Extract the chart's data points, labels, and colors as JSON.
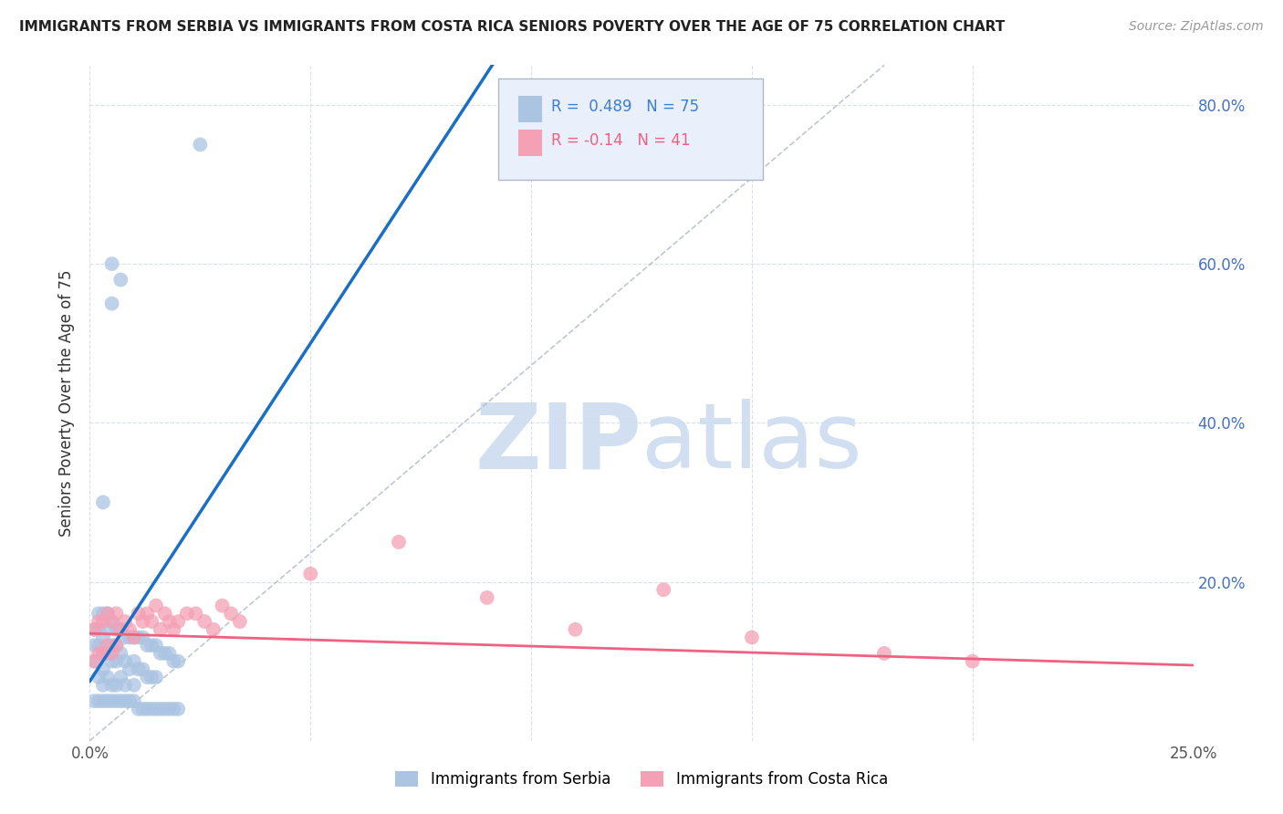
{
  "title": "IMMIGRANTS FROM SERBIA VS IMMIGRANTS FROM COSTA RICA SENIORS POVERTY OVER THE AGE OF 75 CORRELATION CHART",
  "source": "Source: ZipAtlas.com",
  "ylabel": "Seniors Poverty Over the Age of 75",
  "xlim": [
    0.0,
    0.25
  ],
  "ylim": [
    0.0,
    0.85
  ],
  "serbia_R": 0.489,
  "serbia_N": 75,
  "costarica_R": -0.14,
  "costarica_N": 41,
  "serbia_color": "#aac4e2",
  "costarica_color": "#f4a0b5",
  "serbia_line_color": "#1a6fc4",
  "costarica_line_color": "#f06080",
  "watermark_color": "#ccdcf0",
  "background_color": "#ffffff",
  "grid_color": "#d0d8e8",
  "legend_border_color": "#b0b8c8",
  "legend_bg_color": "#eaf0fb",
  "serbia_label_color": "#3a7fd4",
  "costarica_label_color": "#f06080",
  "right_axis_color": "#4472c4",
  "serbia_x": [
    0.001,
    0.001,
    0.001,
    0.002,
    0.002,
    0.002,
    0.002,
    0.003,
    0.003,
    0.003,
    0.003,
    0.003,
    0.004,
    0.004,
    0.004,
    0.004,
    0.005,
    0.005,
    0.005,
    0.005,
    0.006,
    0.006,
    0.006,
    0.006,
    0.007,
    0.007,
    0.007,
    0.008,
    0.008,
    0.008,
    0.009,
    0.009,
    0.01,
    0.01,
    0.01,
    0.011,
    0.011,
    0.012,
    0.012,
    0.013,
    0.013,
    0.014,
    0.014,
    0.015,
    0.015,
    0.016,
    0.017,
    0.018,
    0.019,
    0.02,
    0.001,
    0.002,
    0.003,
    0.004,
    0.005,
    0.006,
    0.007,
    0.008,
    0.009,
    0.01,
    0.011,
    0.012,
    0.013,
    0.014,
    0.015,
    0.016,
    0.017,
    0.018,
    0.019,
    0.02,
    0.003,
    0.005,
    0.007,
    0.025,
    0.005
  ],
  "serbia_y": [
    0.14,
    0.12,
    0.1,
    0.16,
    0.14,
    0.12,
    0.08,
    0.16,
    0.13,
    0.11,
    0.09,
    0.07,
    0.16,
    0.14,
    0.11,
    0.08,
    0.15,
    0.12,
    0.1,
    0.07,
    0.14,
    0.12,
    0.1,
    0.07,
    0.14,
    0.11,
    0.08,
    0.13,
    0.1,
    0.07,
    0.13,
    0.09,
    0.13,
    0.1,
    0.07,
    0.13,
    0.09,
    0.13,
    0.09,
    0.12,
    0.08,
    0.12,
    0.08,
    0.12,
    0.08,
    0.11,
    0.11,
    0.11,
    0.1,
    0.1,
    0.05,
    0.05,
    0.05,
    0.05,
    0.05,
    0.05,
    0.05,
    0.05,
    0.05,
    0.05,
    0.04,
    0.04,
    0.04,
    0.04,
    0.04,
    0.04,
    0.04,
    0.04,
    0.04,
    0.04,
    0.3,
    0.55,
    0.58,
    0.75,
    0.6
  ],
  "costarica_x": [
    0.001,
    0.001,
    0.002,
    0.002,
    0.003,
    0.003,
    0.004,
    0.004,
    0.005,
    0.005,
    0.006,
    0.006,
    0.007,
    0.008,
    0.009,
    0.01,
    0.011,
    0.012,
    0.013,
    0.014,
    0.015,
    0.016,
    0.017,
    0.018,
    0.019,
    0.02,
    0.022,
    0.024,
    0.026,
    0.028,
    0.03,
    0.032,
    0.034,
    0.05,
    0.07,
    0.09,
    0.11,
    0.13,
    0.15,
    0.18,
    0.2
  ],
  "costarica_y": [
    0.14,
    0.1,
    0.15,
    0.11,
    0.15,
    0.11,
    0.16,
    0.12,
    0.15,
    0.11,
    0.16,
    0.12,
    0.14,
    0.15,
    0.14,
    0.13,
    0.16,
    0.15,
    0.16,
    0.15,
    0.17,
    0.14,
    0.16,
    0.15,
    0.14,
    0.15,
    0.16,
    0.16,
    0.15,
    0.14,
    0.17,
    0.16,
    0.15,
    0.21,
    0.25,
    0.18,
    0.14,
    0.19,
    0.13,
    0.11,
    0.1
  ]
}
